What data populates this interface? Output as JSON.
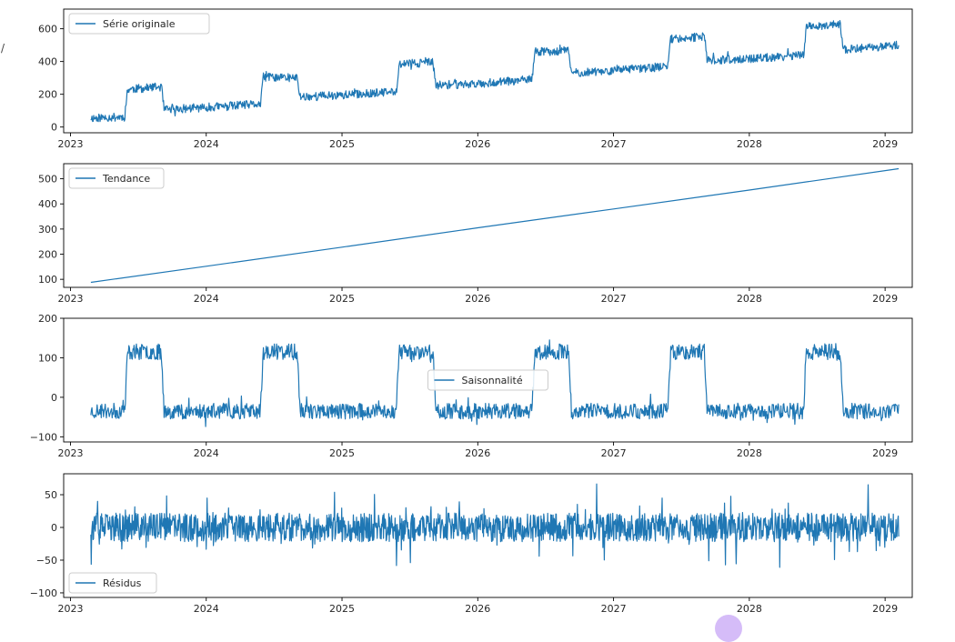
{
  "chart_data": [
    {
      "type": "line",
      "title": "",
      "xlabel": "",
      "ylabel": "",
      "xlim": [
        2022.95,
        2029.2
      ],
      "ylim": [
        -35,
        720
      ],
      "xticks": [
        2023,
        2024,
        2025,
        2026,
        2027,
        2028,
        2029
      ],
      "xtick_labels": [
        "2023",
        "2024",
        "2025",
        "2026",
        "2027",
        "2028",
        "2029"
      ],
      "yticks": [
        0,
        200,
        400,
        600
      ],
      "ytick_labels": [
        "0",
        "200",
        "400",
        "600"
      ],
      "grid": false,
      "legend": "upper left",
      "series": [
        {
          "name": "Série originale",
          "x": [
            2023.15,
            2023.4,
            2023.42,
            2023.67,
            2023.69,
            2024.0,
            2024.4,
            2024.42,
            2024.67,
            2024.69,
            2025.0,
            2025.4,
            2025.42,
            2025.67,
            2025.69,
            2026.0,
            2026.4,
            2026.42,
            2026.67,
            2026.69,
            2027.0,
            2027.4,
            2027.42,
            2027.67,
            2027.69,
            2028.0,
            2028.4,
            2028.42,
            2028.67,
            2028.69,
            2029.1
          ],
          "values": [
            55,
            62,
            230,
            245,
            105,
            120,
            140,
            305,
            300,
            185,
            195,
            215,
            385,
            395,
            255,
            265,
            290,
            460,
            465,
            330,
            345,
            370,
            540,
            550,
            405,
            415,
            440,
            615,
            625,
            470,
            500
          ]
        }
      ],
      "color": "#1f77b4"
    },
    {
      "type": "line",
      "title": "",
      "xlabel": "",
      "ylabel": "",
      "xlim": [
        2022.95,
        2029.2
      ],
      "ylim": [
        68,
        560
      ],
      "xticks": [
        2023,
        2024,
        2025,
        2026,
        2027,
        2028,
        2029
      ],
      "xtick_labels": [
        "2023",
        "2024",
        "2025",
        "2026",
        "2027",
        "2028",
        "2029"
      ],
      "yticks": [
        100,
        200,
        300,
        400,
        500
      ],
      "ytick_labels": [
        "100",
        "200",
        "300",
        "400",
        "500"
      ],
      "grid": false,
      "legend": "upper left",
      "series": [
        {
          "name": "Tendance",
          "x": [
            2023.15,
            2024.0,
            2025.0,
            2026.0,
            2027.0,
            2028.0,
            2029.1
          ],
          "values": [
            88,
            152,
            228,
            305,
            380,
            455,
            540
          ]
        }
      ],
      "color": "#1f77b4"
    },
    {
      "type": "line",
      "title": "",
      "xlabel": "",
      "ylabel": "",
      "xlim": [
        2022.95,
        2029.2
      ],
      "ylim": [
        -113,
        200
      ],
      "xticks": [
        2023,
        2024,
        2025,
        2026,
        2027,
        2028,
        2029
      ],
      "xtick_labels": [
        "2023",
        "2024",
        "2025",
        "2026",
        "2027",
        "2028",
        "2029"
      ],
      "yticks": [
        -100,
        0,
        100,
        200
      ],
      "ytick_labels": [
        "−100",
        "0",
        "100",
        "200"
      ],
      "grid": false,
      "legend": "center",
      "series": [
        {
          "name": "Saisonnalité",
          "x": [
            2023.15,
            2023.4,
            2023.42,
            2023.67,
            2023.69,
            2024.4,
            2024.42,
            2024.67,
            2024.69,
            2025.4,
            2025.42,
            2025.67,
            2025.69,
            2026.4,
            2026.42,
            2026.67,
            2026.69,
            2027.4,
            2027.42,
            2027.67,
            2027.69,
            2028.4,
            2028.42,
            2028.67,
            2028.69,
            2029.1
          ],
          "values": [
            -35,
            -35,
            115,
            115,
            -35,
            -35,
            115,
            115,
            -35,
            -35,
            115,
            115,
            -35,
            -35,
            115,
            115,
            -35,
            -35,
            115,
            115,
            -35,
            -35,
            115,
            115,
            -35,
            -35
          ]
        }
      ],
      "color": "#1f77b4"
    },
    {
      "type": "line",
      "title": "",
      "xlabel": "",
      "ylabel": "",
      "xlim": [
        2022.95,
        2029.2
      ],
      "ylim": [
        -107,
        82
      ],
      "xticks": [
        2023,
        2024,
        2025,
        2026,
        2027,
        2028,
        2029
      ],
      "xtick_labels": [
        "2023",
        "2024",
        "2025",
        "2026",
        "2027",
        "2028",
        "2029"
      ],
      "yticks": [
        -100,
        -50,
        0,
        50
      ],
      "ytick_labels": [
        "−100",
        "−50",
        "0",
        "50"
      ],
      "grid": false,
      "legend": "lower left",
      "series": [
        {
          "name": "Résidus",
          "x": [
            2023.15,
            2029.1
          ],
          "values": [
            0,
            0
          ]
        }
      ],
      "color": "#1f77b4"
    }
  ]
}
